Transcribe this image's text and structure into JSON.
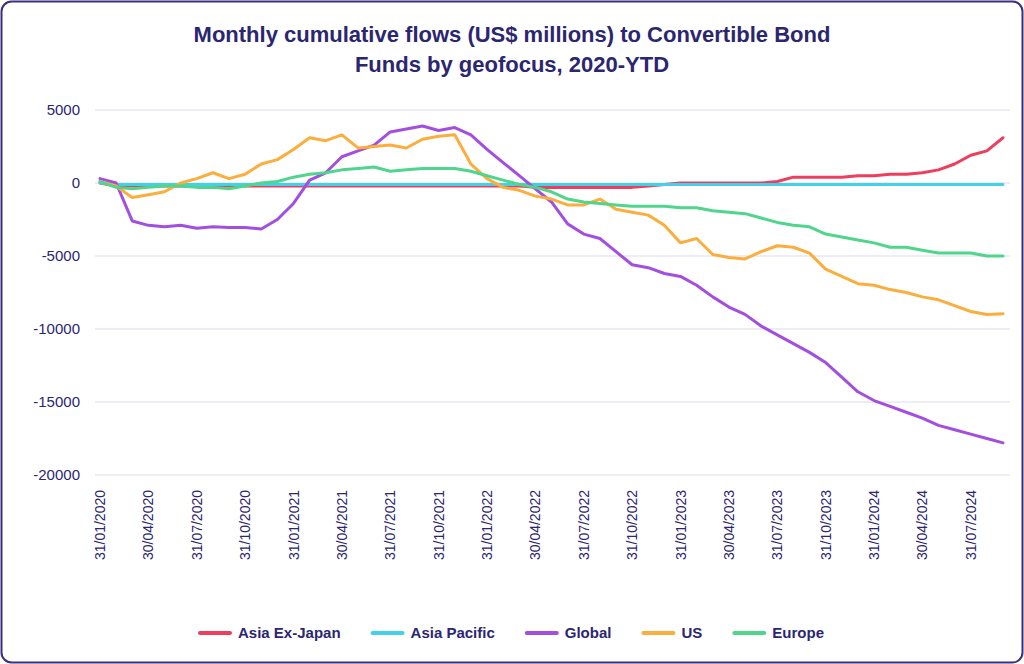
{
  "chart_data": {
    "type": "line",
    "title": "Monthly cumulative flows (US$ millions) to Convertible Bond Funds by geofocus, 2020-YTD",
    "categories": [
      "31/01/2020",
      null,
      null,
      "30/04/2020",
      null,
      null,
      "31/07/2020",
      null,
      null,
      "31/10/2020",
      null,
      null,
      "31/01/2021",
      null,
      null,
      "30/04/2021",
      null,
      null,
      "31/07/2021",
      null,
      null,
      "31/10/2021",
      null,
      null,
      "31/01/2022",
      null,
      null,
      "30/04/2022",
      null,
      null,
      "31/07/2022",
      null,
      null,
      "31/10/2022",
      null,
      null,
      "31/01/2023",
      null,
      null,
      "30/04/2023",
      null,
      null,
      "31/07/2023",
      null,
      null,
      "31/10/2023",
      null,
      null,
      "31/01/2024",
      null,
      null,
      "30/04/2024",
      null,
      null,
      "31/07/2024",
      null,
      null
    ],
    "series": [
      {
        "name": "Asia Ex-Japan",
        "color": "#ee3e5d",
        "values": [
          0,
          -200,
          -200,
          -200,
          -200,
          -200,
          -200,
          -200,
          -200,
          -200,
          -200,
          -200,
          -200,
          -200,
          -200,
          -200,
          -200,
          -200,
          -200,
          -200,
          -200,
          -200,
          -200,
          -200,
          -200,
          -200,
          -200,
          -300,
          -300,
          -300,
          -300,
          -300,
          -300,
          -300,
          -200,
          -100,
          0,
          0,
          0,
          0,
          0,
          0,
          100,
          400,
          400,
          400,
          400,
          500,
          500,
          600,
          600,
          700,
          900,
          1300,
          1900,
          2200,
          3100
        ]
      },
      {
        "name": "Asia Pacific",
        "color": "#43d1ea",
        "values": [
          0,
          -100,
          -100,
          -100,
          -100,
          -100,
          -100,
          -100,
          -100,
          -100,
          -100,
          -100,
          -100,
          -100,
          -100,
          -100,
          -100,
          -100,
          -100,
          -100,
          -100,
          -100,
          -100,
          -100,
          -100,
          -100,
          -100,
          -100,
          -100,
          -100,
          -100,
          -100,
          -100,
          -100,
          -100,
          -100,
          -100,
          -100,
          -100,
          -100,
          -100,
          -100,
          -100,
          -100,
          -100,
          -100,
          -100,
          -100,
          -100,
          -100,
          -100,
          -100,
          -100,
          -100,
          -100,
          -100,
          -100
        ]
      },
      {
        "name": "Global",
        "color": "#a24fe0",
        "values": [
          300,
          0,
          -2600,
          -2900,
          -3000,
          -2900,
          -3100,
          -3000,
          -3050,
          -3050,
          -3150,
          -2500,
          -1400,
          200,
          700,
          1800,
          2200,
          2600,
          3500,
          3700,
          3900,
          3600,
          3800,
          3300,
          2300,
          1400,
          500,
          -400,
          -1300,
          -2800,
          -3500,
          -3800,
          -4700,
          -5600,
          -5800,
          -6200,
          -6400,
          -7000,
          -7800,
          -8500,
          -9000,
          -9800,
          -10400,
          -11000,
          -11600,
          -12300,
          -13300,
          -14300,
          -14900,
          -15300,
          -15700,
          -16100,
          -16600,
          -16900,
          -17200,
          -17500,
          -17800
        ]
      },
      {
        "name": "US",
        "color": "#fbae3e",
        "values": [
          100,
          -200,
          -1000,
          -800,
          -600,
          0,
          300,
          700,
          300,
          600,
          1300,
          1600,
          2300,
          3100,
          2900,
          3300,
          2400,
          2500,
          2600,
          2400,
          3000,
          3200,
          3300,
          1300,
          300,
          -300,
          -500,
          -900,
          -1100,
          -1500,
          -1500,
          -1100,
          -1800,
          -2000,
          -2200,
          -2900,
          -4100,
          -3800,
          -4900,
          -5100,
          -5200,
          -4700,
          -4300,
          -4400,
          -4800,
          -5900,
          -6400,
          -6900,
          -7000,
          -7300,
          -7500,
          -7800,
          -8000,
          -8400,
          -8800,
          -9000,
          -8950
        ]
      },
      {
        "name": "Europe",
        "color": "#4fd58c",
        "values": [
          100,
          -300,
          -400,
          -300,
          -200,
          -200,
          -300,
          -300,
          -400,
          -200,
          0,
          100,
          400,
          600,
          700,
          900,
          1000,
          1100,
          800,
          900,
          1000,
          1000,
          1000,
          800,
          500,
          200,
          -100,
          -300,
          -600,
          -1100,
          -1300,
          -1400,
          -1500,
          -1600,
          -1600,
          -1600,
          -1700,
          -1700,
          -1900,
          -2000,
          -2100,
          -2400,
          -2700,
          -2900,
          -3000,
          -3500,
          -3700,
          -3900,
          -4100,
          -4400,
          -4400,
          -4600,
          -4800,
          -4800,
          -4800,
          -5000,
          -5000
        ]
      }
    ],
    "ylim": [
      -20000,
      5000
    ],
    "yticks": [
      -20000,
      -15000,
      -10000,
      -5000,
      0,
      5000
    ],
    "grid": true,
    "legend": "bottom"
  }
}
